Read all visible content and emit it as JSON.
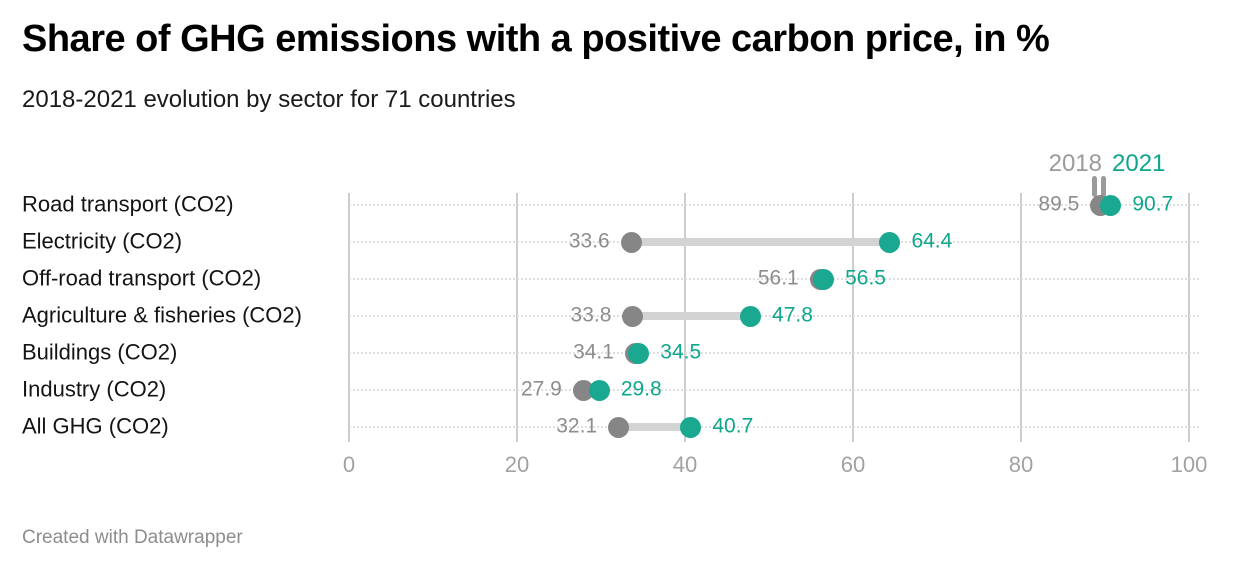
{
  "header": {
    "title": "Share of GHG emissions with a positive carbon price, in %",
    "subtitle": "2018-2021 evolution by sector for 71 countries"
  },
  "legend": {
    "series1_label": "2018",
    "series2_label": "2021",
    "position": "top-right"
  },
  "footer": {
    "credit": "Created with Datawrapper"
  },
  "colors": {
    "series1_dot": "#868686",
    "series1_text": "#9b9b9b",
    "series1_value_text": "#8d8d8d",
    "series2_dot": "#1aa891",
    "series2_text": "#0ea78b",
    "connector": "#d3d3d3",
    "gridline": "#cdcdcd",
    "rowline": "#dedede",
    "axis_text": "#a2a2a2",
    "category_text": "#141414",
    "legend_tick": "#9a9a9a",
    "background": "#ffffff"
  },
  "chart_data": {
    "type": "dumbbell",
    "title": "Share of GHG emissions with a positive carbon price, in %",
    "subtitle": "2018-2021 evolution by sector for 71 countries",
    "categories": [
      "Road transport (CO2)",
      "Electricity (CO2)",
      "Off-road transport (CO2)",
      "Agriculture & fisheries (CO2)",
      "Buildings (CO2)",
      "Industry (CO2)",
      "All GHG (CO2)"
    ],
    "series": [
      {
        "name": "2018",
        "values": [
          89.5,
          33.6,
          56.1,
          33.8,
          34.1,
          27.9,
          32.1
        ]
      },
      {
        "name": "2021",
        "values": [
          90.7,
          64.4,
          56.5,
          47.8,
          34.5,
          29.8,
          40.7
        ]
      }
    ],
    "xticks": [
      0,
      20,
      40,
      60,
      80,
      100
    ],
    "xlim": [
      0,
      100
    ],
    "xlabel": "",
    "ylabel": "",
    "grid": "vertical gridlines + dotted horizontal row guides",
    "legend_position": "top-right",
    "value_labels": "both endpoints, one decimal"
  }
}
